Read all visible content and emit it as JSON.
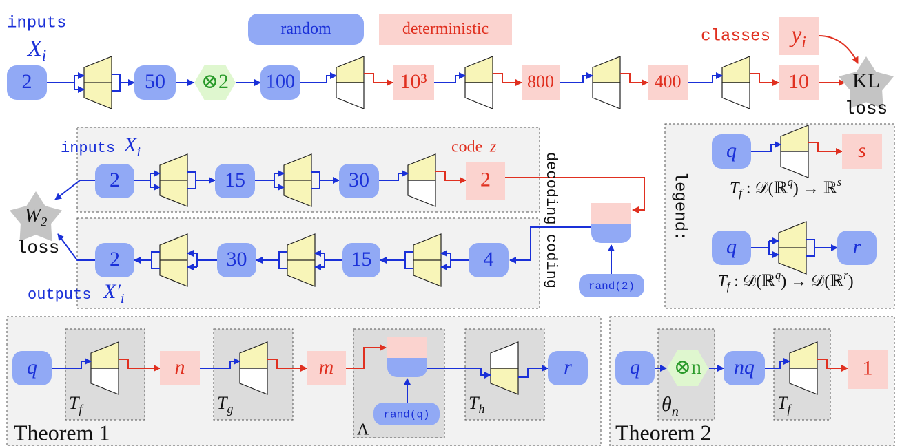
{
  "header": {
    "inputs_label": "inputs",
    "inputs_var": [
      {
        "text": "X"
      },
      {
        "text": "i",
        "shift": "sub"
      }
    ],
    "legend_random": "random",
    "legend_deterministic": "deterministic",
    "classes_label": "classes",
    "classes_var": [
      {
        "text": "y"
      },
      {
        "text": "i",
        "shift": "sub"
      }
    ]
  },
  "classifier": {
    "nodes": [
      "2",
      "50",
      "⊗2",
      "100",
      "10³",
      "800",
      "400",
      "10"
    ],
    "loss_name": "KL",
    "loss_label": "loss"
  },
  "autoencoder": {
    "inputs_label": "inputs",
    "inputs_var": [
      {
        "text": "X"
      },
      {
        "text": "i",
        "shift": "sub"
      }
    ],
    "code_label": "code",
    "code_var": "z",
    "encoder_nodes": [
      "2",
      "15",
      "30",
      "2"
    ],
    "decoder_nodes": [
      "2",
      "30",
      "15",
      "4"
    ],
    "loss_name": [
      {
        "text": "W"
      },
      {
        "text": "2",
        "shift": "sub"
      }
    ],
    "loss_label": "loss",
    "outputs_label": "outputs",
    "outputs_var": [
      {
        "text": "X′"
      },
      {
        "text": "i",
        "shift": "sub"
      }
    ],
    "side_label": "decoding coding",
    "noise": "rand(2)"
  },
  "legend": {
    "title": "legend:",
    "rows": [
      {
        "input": "q",
        "output": "s",
        "formula": [
          {
            "text": "T"
          },
          {
            "text": "f",
            "shift": "sub"
          },
          {
            "text": " : 𝒟(ℝ"
          },
          {
            "text": "q",
            "shift": "sup"
          },
          {
            "text": ") → ℝ"
          },
          {
            "text": "s",
            "shift": "sup"
          }
        ]
      },
      {
        "input": "q",
        "output": "r",
        "formula": [
          {
            "text": "T"
          },
          {
            "text": "f",
            "shift": "sub"
          },
          {
            "text": " : 𝒟(ℝ"
          },
          {
            "text": "q",
            "shift": "sup"
          },
          {
            "text": ") → 𝒟(ℝ"
          },
          {
            "text": "r",
            "shift": "sup"
          },
          {
            "text": ")"
          }
        ]
      }
    ]
  },
  "theorem1": {
    "title": "Theorem 1",
    "input": "q",
    "n": "n",
    "m": "m",
    "output": "r",
    "noise": "rand(q)",
    "tf": [
      {
        "text": "T"
      },
      {
        "text": "f",
        "shift": "sub"
      }
    ],
    "tg": [
      {
        "text": "T"
      },
      {
        "text": "g",
        "shift": "sub"
      }
    ],
    "lambda": "Λ",
    "th": [
      {
        "text": "T"
      },
      {
        "text": "h",
        "shift": "sub"
      }
    ]
  },
  "theorem2": {
    "title": "Theorem 2",
    "input": "q",
    "tensor": "⊗n",
    "theta": [
      {
        "text": "θ"
      },
      {
        "text": "n",
        "shift": "sub"
      }
    ],
    "nq": "nq",
    "tf": [
      {
        "text": "T"
      },
      {
        "text": "f",
        "shift": "sub"
      }
    ],
    "output": "1"
  }
}
